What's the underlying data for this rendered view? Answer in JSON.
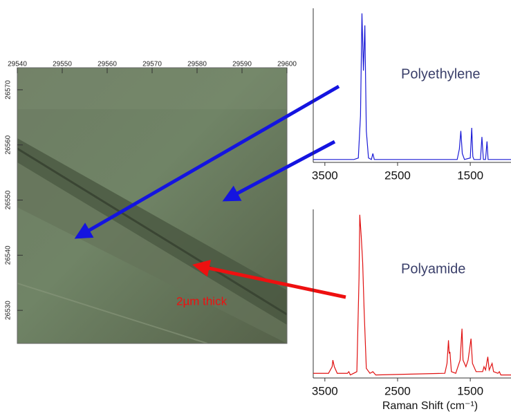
{
  "chart_data": [
    {
      "type": "image",
      "xlim": [
        29540,
        29600
      ],
      "xticks": [
        29540,
        29550,
        29560,
        29570,
        29580,
        29590,
        29600
      ],
      "ylim": [
        26574,
        26524
      ],
      "yticks": [
        26570,
        26560,
        26550,
        26540,
        26530
      ],
      "annotation": "2µm thick"
    },
    {
      "type": "line",
      "annotation": "Polyethylene",
      "color": "#1a1ad6",
      "xlim": [
        3660,
        940
      ],
      "xticks": [
        3500,
        2500,
        1500
      ],
      "ylim": [
        0,
        100
      ],
      "x": [
        3660,
        3100,
        3040,
        3010,
        2990,
        2970,
        2950,
        2930,
        2900,
        2860,
        2840,
        2820,
        2000,
        1680,
        1650,
        1630,
        1610,
        1580,
        1500,
        1480,
        1465,
        1450,
        1360,
        1340,
        1320,
        1290,
        1270,
        1255,
        940
      ],
      "values": [
        1,
        1,
        2,
        30,
        98,
        60,
        90,
        20,
        2,
        1,
        5,
        1,
        1,
        1,
        8,
        20,
        5,
        1,
        2,
        22,
        3,
        1,
        1,
        16,
        1,
        1,
        13,
        1,
        1
      ]
    },
    {
      "type": "line",
      "annotation": "Polyamide",
      "color": "#e01010",
      "xlabel": "Raman Shift (cm⁻¹)",
      "xlim": [
        3660,
        940
      ],
      "xticks": [
        3500,
        2500,
        1500
      ],
      "ylim": [
        0,
        100
      ],
      "x": [
        3660,
        3450,
        3400,
        3390,
        3370,
        3330,
        3190,
        3170,
        3150,
        3060,
        3030,
        3020,
        3000,
        2980,
        2960,
        2930,
        2880,
        2840,
        2800,
        1850,
        1820,
        1800,
        1790,
        1780,
        1760,
        1700,
        1640,
        1614,
        1600,
        1560,
        1530,
        1490,
        1470,
        1420,
        1330,
        1311,
        1290,
        1259,
        1240,
        1200,
        1180,
        1120,
        1100,
        1080,
        940
      ],
      "values": [
        2,
        2,
        6,
        10,
        6,
        2,
        2,
        3,
        1,
        3,
        60,
        98,
        85,
        69,
        40,
        5,
        2,
        3,
        1,
        2,
        8,
        22,
        14,
        15,
        3,
        2,
        10,
        29,
        10,
        6,
        10,
        23,
        8,
        3,
        3,
        6,
        4,
        12,
        4,
        8,
        3,
        2,
        3,
        1,
        1
      ]
    }
  ]
}
